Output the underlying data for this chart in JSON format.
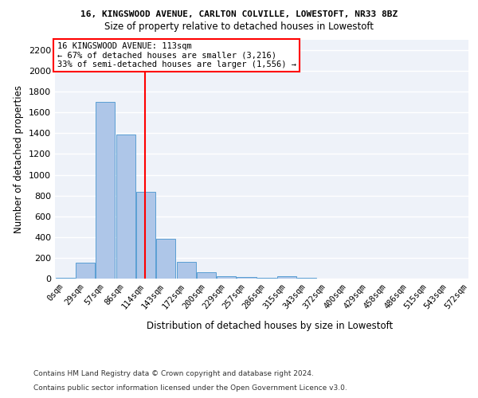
{
  "title1": "16, KINGSWOOD AVENUE, CARLTON COLVILLE, LOWESTOFT, NR33 8BZ",
  "title2": "Size of property relative to detached houses in Lowestoft",
  "xlabel": "Distribution of detached houses by size in Lowestoft",
  "ylabel": "Number of detached properties",
  "bin_labels": [
    "0sqm",
    "29sqm",
    "57sqm",
    "86sqm",
    "114sqm",
    "143sqm",
    "172sqm",
    "200sqm",
    "229sqm",
    "257sqm",
    "286sqm",
    "315sqm",
    "343sqm",
    "372sqm",
    "400sqm",
    "429sqm",
    "458sqm",
    "486sqm",
    "515sqm",
    "543sqm",
    "572sqm"
  ],
  "bar_values": [
    10,
    155,
    1700,
    1390,
    835,
    380,
    160,
    65,
    20,
    15,
    5,
    25,
    5,
    0,
    0,
    0,
    0,
    0,
    0,
    0
  ],
  "bar_color": "#aec6e8",
  "bar_edge_color": "#5a9fd4",
  "annotation_line1": "16 KINGSWOOD AVENUE: 113sqm",
  "annotation_line2": "← 67% of detached houses are smaller (3,216)",
  "annotation_line3": "33% of semi-detached houses are larger (1,556) →",
  "annotation_box_color": "white",
  "annotation_border_color": "red",
  "vline_color": "red",
  "ylim": [
    0,
    2300
  ],
  "yticks": [
    0,
    200,
    400,
    600,
    800,
    1000,
    1200,
    1400,
    1600,
    1800,
    2000,
    2200
  ],
  "footer1": "Contains HM Land Registry data © Crown copyright and database right 2024.",
  "footer2": "Contains public sector information licensed under the Open Government Licence v3.0.",
  "background_color": "#eef2f9",
  "grid_color": "white"
}
